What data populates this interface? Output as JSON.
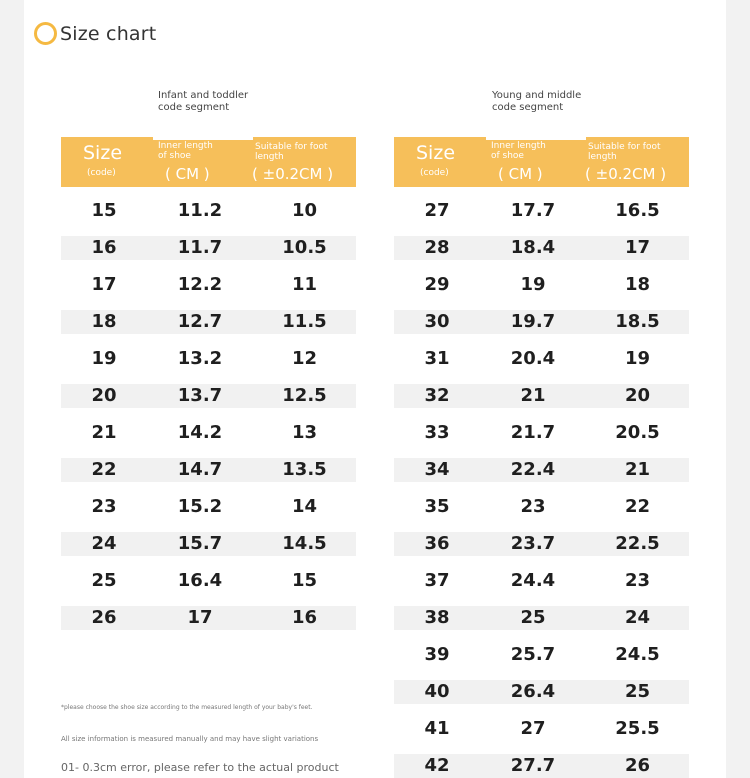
{
  "title": "Size chart",
  "left_segment": {
    "line1": "Infant and toddler",
    "line2": "code segment"
  },
  "right_segment": {
    "line1": "Young and middle",
    "line2": "code segment"
  },
  "header": {
    "size": "Size",
    "code": "(code)",
    "inner_line1": "Inner length",
    "inner_line2": "of shoe",
    "inner_unit": "( CM )",
    "foot_line1": "Suitable for foot",
    "foot_line2": "length",
    "foot_unit": "( ±0.2CM )"
  },
  "left_rows": [
    [
      "15",
      "11.2",
      "10"
    ],
    [
      "16",
      "11.7",
      "10.5"
    ],
    [
      "17",
      "12.2",
      "11"
    ],
    [
      "18",
      "12.7",
      "11.5"
    ],
    [
      "19",
      "13.2",
      "12"
    ],
    [
      "20",
      "13.7",
      "12.5"
    ],
    [
      "21",
      "14.2",
      "13"
    ],
    [
      "22",
      "14.7",
      "13.5"
    ],
    [
      "23",
      "15.2",
      "14"
    ],
    [
      "24",
      "15.7",
      "14.5"
    ],
    [
      "25",
      "16.4",
      "15"
    ],
    [
      "26",
      "17",
      "16"
    ]
  ],
  "right_rows": [
    [
      "27",
      "17.7",
      "16.5"
    ],
    [
      "28",
      "18.4",
      "17"
    ],
    [
      "29",
      "19",
      "18"
    ],
    [
      "30",
      "19.7",
      "18.5"
    ],
    [
      "31",
      "20.4",
      "19"
    ],
    [
      "32",
      "21",
      "20"
    ],
    [
      "33",
      "21.7",
      "20.5"
    ],
    [
      "34",
      "22.4",
      "21"
    ],
    [
      "35",
      "23",
      "22"
    ],
    [
      "36",
      "23.7",
      "22.5"
    ],
    [
      "37",
      "24.4",
      "23"
    ],
    [
      "38",
      "25",
      "24"
    ],
    [
      "39",
      "25.7",
      "24.5"
    ],
    [
      "40",
      "26.4",
      "25"
    ],
    [
      "41",
      "27",
      "25.5"
    ],
    [
      "42",
      "27.7",
      "26"
    ]
  ],
  "notes": {
    "choose": "*please choose the shoe size according to the measured length of your baby's feet.",
    "manual": "All size information is measured manually and may have slight variations",
    "error": "01- 0.3cm error, please refer to the actual product"
  },
  "colors": {
    "header": "#f6bf5a",
    "ring": "#f5b942",
    "shade": "#f1f1f1"
  }
}
